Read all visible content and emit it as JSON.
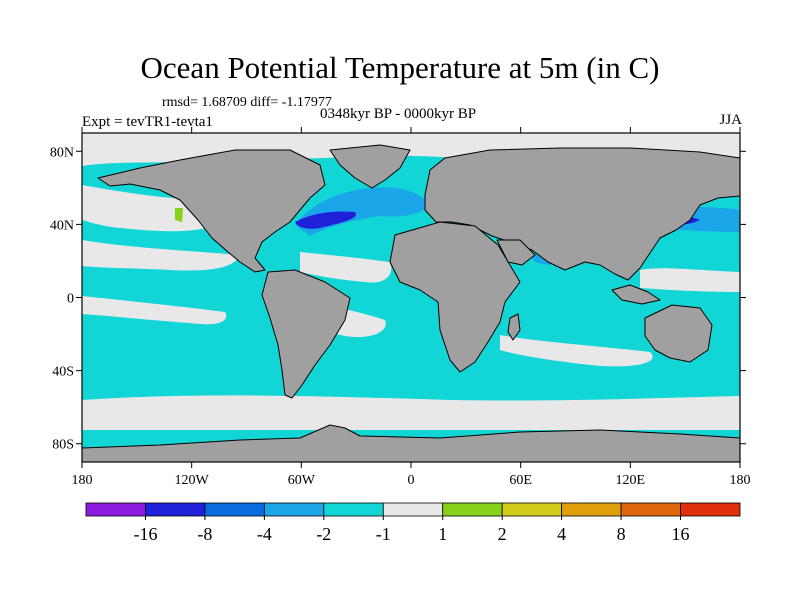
{
  "chart_data": {
    "type": "heatmap",
    "title": "Ocean Potential Temperature at 5m (in C)",
    "stats": "rmsd= 1.68709 diff= -1.17977",
    "period": "0348kyr BP - 0000kyr BP",
    "left_label": "Expt = tevTR1-tevta1",
    "right_label": "JJA",
    "x_ticks": [
      "180",
      "120W",
      "60W",
      "0",
      "60E",
      "120E",
      "180"
    ],
    "y_ticks": [
      "80N",
      "40N",
      "0",
      "40S",
      "80S"
    ],
    "xlim": [
      -180,
      180
    ],
    "ylim": [
      -90,
      90
    ],
    "colorbar": {
      "colors": [
        "#8b1ce0",
        "#2020d8",
        "#0a6ae0",
        "#1aa6e8",
        "#12d6d6",
        "#e8e8e8",
        "#86d21a",
        "#d2cc1a",
        "#e0a00c",
        "#e0660c",
        "#e0300c"
      ],
      "labels": [
        "-16",
        "-8",
        "-4",
        "-2",
        "-1",
        "1",
        "2",
        "4",
        "8",
        "16"
      ]
    },
    "colors": {
      "land": "#a0a0a0",
      "ocean": "#12d6d6",
      "cool_band": "#e8e8e8"
    }
  }
}
